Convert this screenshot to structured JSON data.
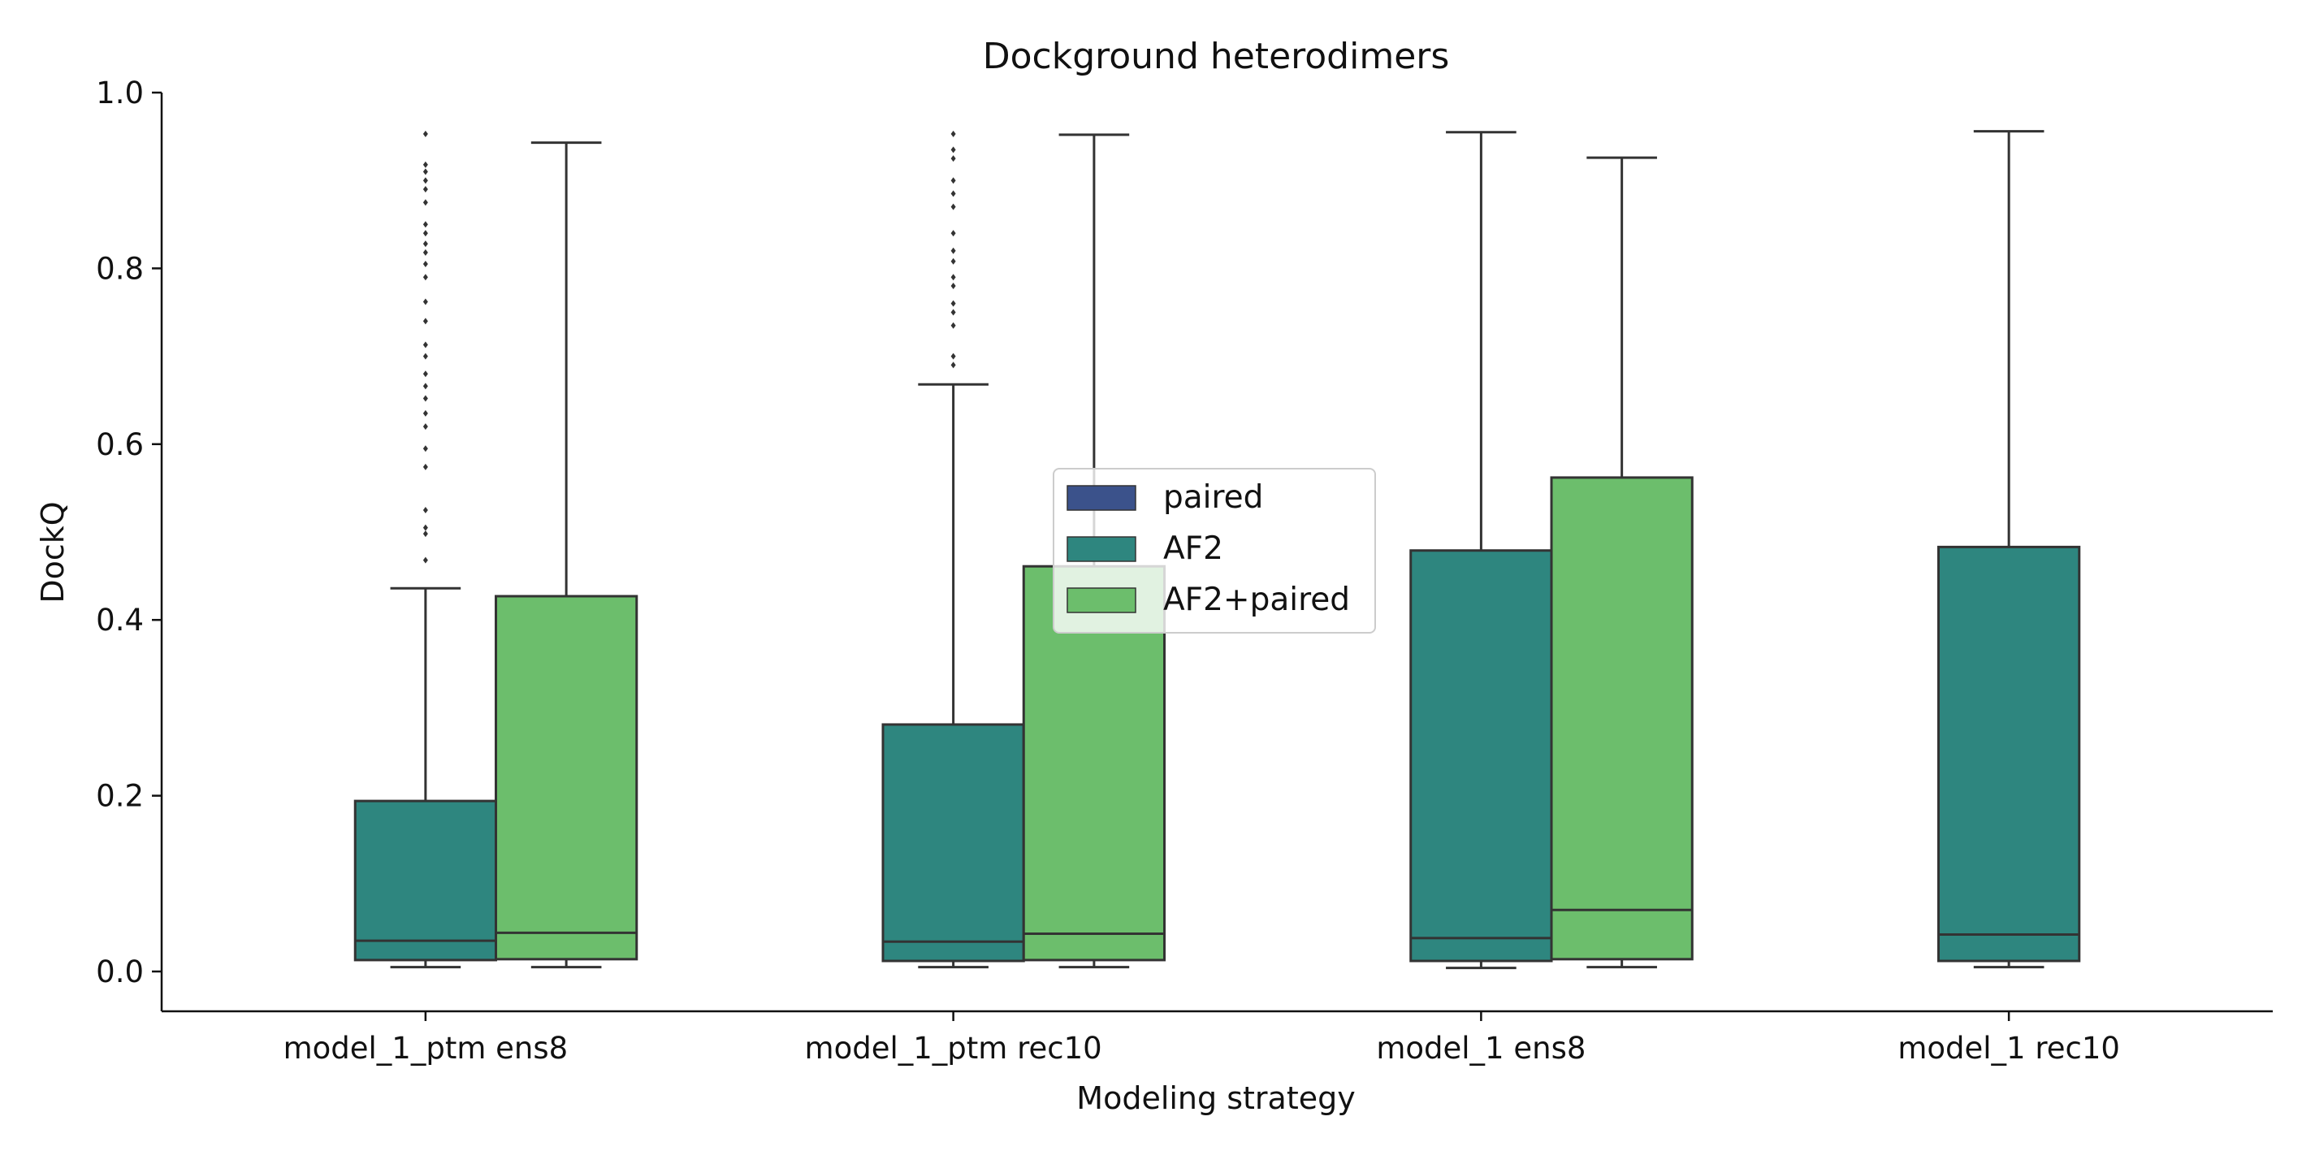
{
  "chart_data": {
    "type": "box",
    "title": "Dockground heterodimers",
    "xlabel": "Modeling strategy",
    "ylabel": "DockQ",
    "ylim": [
      -0.045,
      1.0
    ],
    "yticks": [
      0.0,
      0.2,
      0.4,
      0.6,
      0.8,
      1.0
    ],
    "ytick_labels": [
      "0.0",
      "0.2",
      "0.4",
      "0.6",
      "0.8",
      "1.0"
    ],
    "categories": [
      "model_1_ptm ens8",
      "model_1_ptm rec10",
      "model_1 ens8",
      "model_1 rec10"
    ],
    "legend": {
      "position": "center",
      "entries": [
        "paired",
        "AF2",
        "AF2+paired"
      ]
    },
    "series": [
      {
        "name": "paired",
        "color": "#3b528b",
        "boxes": [
          null,
          null,
          null,
          null
        ]
      },
      {
        "name": "AF2",
        "color": "#2e867f",
        "boxes": [
          {
            "whislo": 0.005,
            "q1": 0.013,
            "med": 0.035,
            "q3": 0.194,
            "whishi": 0.436,
            "fliers": [
              0.468,
              0.498,
              0.505,
              0.525,
              0.574,
              0.595,
              0.62,
              0.635,
              0.652,
              0.666,
              0.68,
              0.7,
              0.713,
              0.74,
              0.762,
              0.79,
              0.805,
              0.818,
              0.828,
              0.84,
              0.85,
              0.875,
              0.89,
              0.9,
              0.91,
              0.918,
              0.953
            ]
          },
          {
            "whislo": 0.005,
            "q1": 0.012,
            "med": 0.034,
            "q3": 0.281,
            "whishi": 0.668,
            "fliers": [
              0.69,
              0.7,
              0.735,
              0.75,
              0.76,
              0.78,
              0.79,
              0.808,
              0.82,
              0.84,
              0.87,
              0.885,
              0.9,
              0.925,
              0.935,
              0.953
            ]
          },
          {
            "whislo": 0.004,
            "q1": 0.012,
            "med": 0.038,
            "q3": 0.479,
            "whishi": 0.955,
            "fliers": []
          },
          {
            "whislo": 0.005,
            "q1": 0.012,
            "med": 0.042,
            "q3": 0.483,
            "whishi": 0.956,
            "fliers": []
          }
        ]
      },
      {
        "name": "AF2+paired",
        "color": "#6cbe6c",
        "boxes": [
          {
            "whislo": 0.005,
            "q1": 0.014,
            "med": 0.044,
            "q3": 0.427,
            "whishi": 0.943,
            "fliers": []
          },
          {
            "whislo": 0.005,
            "q1": 0.013,
            "med": 0.043,
            "q3": 0.461,
            "whishi": 0.952,
            "fliers": []
          },
          {
            "whislo": 0.005,
            "q1": 0.014,
            "med": 0.07,
            "q3": 0.562,
            "whishi": 0.926,
            "fliers": []
          },
          null
        ]
      }
    ]
  }
}
